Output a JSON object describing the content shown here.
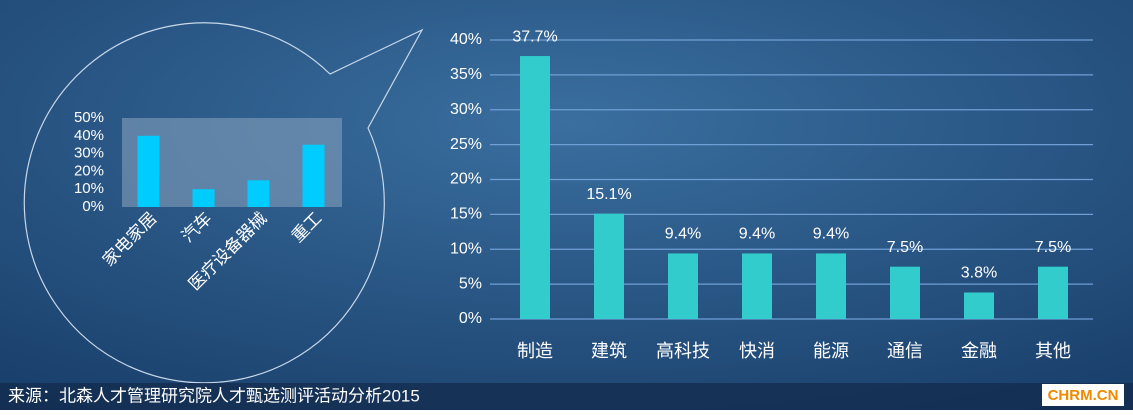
{
  "chart_data": [
    {
      "type": "bar",
      "categories": [
        "制造",
        "建筑",
        "高科技",
        "快消",
        "能源",
        "通信",
        "金融",
        "其他"
      ],
      "values": [
        37.7,
        15.1,
        9.4,
        9.4,
        9.4,
        7.5,
        3.8,
        7.5
      ],
      "value_labels": [
        "37.7%",
        "15.1%",
        "9.4%",
        "9.4%",
        "9.4%",
        "7.5%",
        "3.8%",
        "7.5%"
      ],
      "color": "#33cccc",
      "ylim": [
        0,
        40
      ],
      "yticks": [
        {
          "value": 0,
          "label": "0%"
        },
        {
          "value": 5,
          "label": "5%"
        },
        {
          "value": 10,
          "label": "10%"
        },
        {
          "value": 15,
          "label": "15%"
        },
        {
          "value": 20,
          "label": "20%"
        },
        {
          "value": 25,
          "label": "25%"
        },
        {
          "value": 30,
          "label": "30%"
        },
        {
          "value": 35,
          "label": "35%"
        },
        {
          "value": 40,
          "label": "40%"
        }
      ],
      "grid": true
    },
    {
      "type": "bar",
      "categories": [
        "家电家居",
        "汽车",
        "医疗设备器械",
        "重工"
      ],
      "values": [
        40,
        10,
        15,
        35
      ],
      "color": "#00ccff",
      "ylim": [
        0,
        50
      ],
      "yticks": [
        {
          "value": 0,
          "label": "0%"
        },
        {
          "value": 10,
          "label": "10%"
        },
        {
          "value": 20,
          "label": "20%"
        },
        {
          "value": 30,
          "label": "30%"
        },
        {
          "value": 40,
          "label": "40%"
        },
        {
          "value": 50,
          "label": "50%"
        }
      ],
      "grid": false
    }
  ],
  "source": "来源：北森人才管理研究院人才甄选测评活动分析2015",
  "watermark": "CHRM.CN"
}
